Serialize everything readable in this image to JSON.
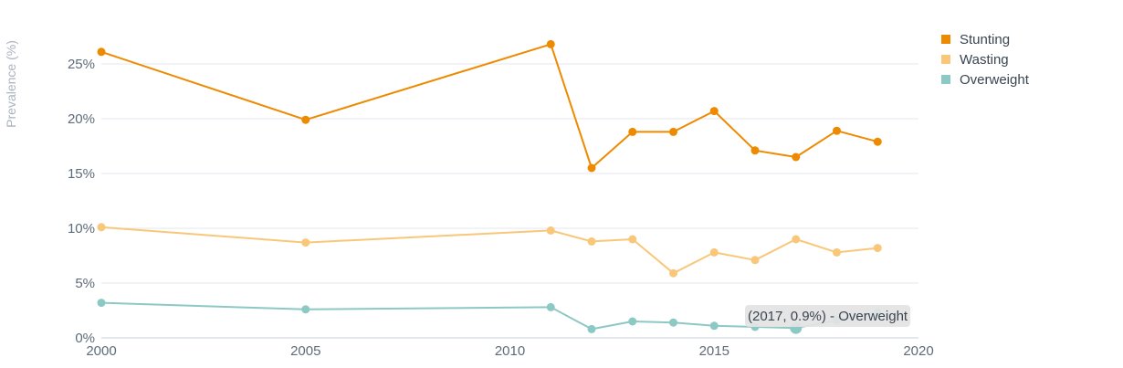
{
  "chart_data": {
    "type": "line",
    "ylabel": "Prevalence (%)",
    "xlabel": "",
    "xlim": [
      2000,
      2020
    ],
    "ylim": [
      0,
      28
    ],
    "x_ticks": [
      {
        "value": 2000,
        "label": "2000"
      },
      {
        "value": 2005,
        "label": "2005"
      },
      {
        "value": 2010,
        "label": "2010"
      },
      {
        "value": 2015,
        "label": "2015"
      },
      {
        "value": 2020,
        "label": "2020"
      }
    ],
    "y_ticks": [
      {
        "value": 0,
        "label": "0%"
      },
      {
        "value": 5,
        "label": "5%"
      },
      {
        "value": 10,
        "label": "10%"
      },
      {
        "value": 15,
        "label": "15%"
      },
      {
        "value": 20,
        "label": "20%"
      },
      {
        "value": 25,
        "label": "25%"
      }
    ],
    "grid": true,
    "legend_position": "top-right",
    "series": [
      {
        "name": "Stunting",
        "color": "#ee8a00",
        "points": [
          {
            "x": 2000,
            "y": 26.1
          },
          {
            "x": 2005,
            "y": 19.9
          },
          {
            "x": 2011,
            "y": 26.8
          },
          {
            "x": 2012,
            "y": 15.5
          },
          {
            "x": 2013,
            "y": 18.8
          },
          {
            "x": 2014,
            "y": 18.8
          },
          {
            "x": 2015,
            "y": 20.7
          },
          {
            "x": 2016,
            "y": 17.1
          },
          {
            "x": 2017,
            "y": 16.5
          },
          {
            "x": 2018,
            "y": 18.9
          },
          {
            "x": 2019,
            "y": 17.9
          }
        ]
      },
      {
        "name": "Wasting",
        "color": "#f9c779",
        "points": [
          {
            "x": 2000,
            "y": 10.1
          },
          {
            "x": 2005,
            "y": 8.7
          },
          {
            "x": 2011,
            "y": 9.8
          },
          {
            "x": 2012,
            "y": 8.8
          },
          {
            "x": 2013,
            "y": 9.0
          },
          {
            "x": 2014,
            "y": 5.9
          },
          {
            "x": 2015,
            "y": 7.8
          },
          {
            "x": 2016,
            "y": 7.1
          },
          {
            "x": 2017,
            "y": 9.0
          },
          {
            "x": 2018,
            "y": 7.8
          },
          {
            "x": 2019,
            "y": 8.2
          }
        ]
      },
      {
        "name": "Overweight",
        "color": "#8dc9c4",
        "points": [
          {
            "x": 2000,
            "y": 3.2
          },
          {
            "x": 2005,
            "y": 2.6
          },
          {
            "x": 2011,
            "y": 2.8
          },
          {
            "x": 2012,
            "y": 0.8
          },
          {
            "x": 2013,
            "y": 1.5
          },
          {
            "x": 2014,
            "y": 1.4
          },
          {
            "x": 2015,
            "y": 1.1
          },
          {
            "x": 2016,
            "y": 1.0
          },
          {
            "x": 2017,
            "y": 0.9
          },
          {
            "x": 2018,
            "y": 1.6
          },
          {
            "x": 2019,
            "y": 2.3
          }
        ]
      }
    ],
    "tooltip": {
      "text": "(2017, 0.9%) - Overweight",
      "series": "Overweight",
      "x": 2017,
      "y": 0.9
    }
  }
}
